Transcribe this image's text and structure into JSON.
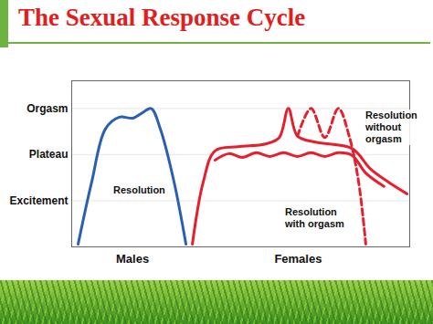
{
  "chart_data": {
    "type": "line",
    "title": "The Sexual Response Cycle",
    "series": [
      {
        "color": "#2b5fb4",
        "line_style": "solid",
        "x": [
          1.9,
          5.9,
          10.0,
          14.1,
          18.1,
          20.8,
          23.5,
          26.2,
          30.3,
          33.8
        ],
        "values": [
          0.06,
          1.4,
          2.56,
          2.81,
          2.79,
          2.9,
          3.0,
          2.56,
          1.4,
          0.06
        ]
      },
      {
        "color": "#e5202e",
        "line_style": "solid",
        "x": [
          35.7,
          38.9,
          42.4,
          49.2,
          57.3,
          61.4,
          64.1,
          66.8,
          72.2,
          83.0,
          88.4,
          93.8,
          99.2
        ],
        "values": [
          0.06,
          1.4,
          2.08,
          2.17,
          2.23,
          2.37,
          3.0,
          2.4,
          2.27,
          2.13,
          1.69,
          1.4,
          1.15
        ]
      },
      {
        "color": "#e5202e",
        "line_style": "dashed",
        "x": [
          66.8,
          70.8,
          74.9,
          78.9,
          82.2,
          84.9,
          87.0
        ],
        "values": [
          2.4,
          3.0,
          2.37,
          3.0,
          2.37,
          1.4,
          0.06
        ]
      },
      {
        "color": "#e5202e",
        "line_style": "solid",
        "x": [
          42.4,
          46.5,
          50.5,
          54.6,
          58.6,
          62.7,
          66.8,
          70.8,
          74.9,
          78.9,
          83.0,
          87.0,
          92.4
        ],
        "values": [
          1.88,
          2.02,
          1.94,
          2.04,
          1.96,
          2.04,
          1.96,
          2.04,
          1.96,
          2.04,
          1.98,
          1.6,
          1.31
        ]
      }
    ],
    "xlim": [
      0,
      100
    ],
    "xticks": [
      {
        "value": 18,
        "label": "Males"
      },
      {
        "value": 67,
        "label": "Females"
      }
    ],
    "ylim": [
      0,
      3.6
    ],
    "yticks": [
      {
        "value": 1,
        "label": "Excitement"
      },
      {
        "value": 2,
        "label": "Plateau"
      },
      {
        "value": 3,
        "label": "Orgasm"
      }
    ],
    "grid": true,
    "annotations": [
      "Resolution",
      "Resolution\nwithout\norgasm",
      "Resolution\nwith orgasm"
    ]
  }
}
